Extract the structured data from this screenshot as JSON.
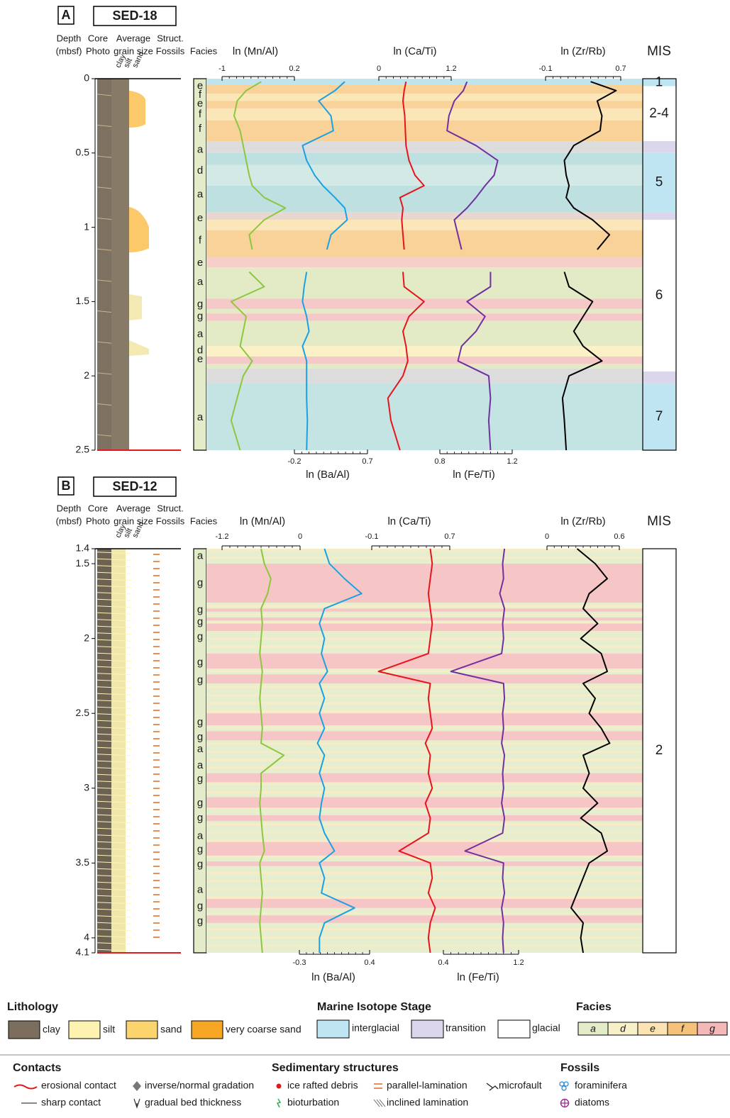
{
  "chart_data": [
    {
      "type": "well-log",
      "panel": "A",
      "core": "SED-18",
      "headers": {
        "depth": [
          "Depth",
          "(mbsf)"
        ],
        "core": [
          "Core",
          "Photo"
        ],
        "grain": [
          "Average",
          "grain size"
        ],
        "struct": [
          "Struct.",
          "Fossils"
        ],
        "facies": "Facies",
        "mis": "MIS"
      },
      "grain_classes": [
        "clay",
        "silt",
        "sand"
      ],
      "ylim": [
        0,
        2.5
      ],
      "yticks": [
        0,
        0.5,
        1,
        1.5,
        2,
        2.5
      ],
      "depth": [
        0.02,
        0.08,
        0.15,
        0.25,
        0.35,
        0.45,
        0.55,
        0.65,
        0.72,
        0.8,
        0.87,
        0.95,
        1.05,
        1.15,
        1.25,
        1.3,
        1.4,
        1.5,
        1.6,
        1.7,
        1.8,
        1.9,
        2.0,
        2.15,
        2.3,
        2.5
      ],
      "series": [
        {
          "name": "ln (Mn/Al)",
          "color": "#8dc63f",
          "axis": "top",
          "xlim": [
            -1,
            0.2
          ],
          "xticks": [
            -1,
            0.2
          ],
          "values": [
            -0.35,
            -0.6,
            -0.75,
            -0.8,
            -0.7,
            -0.65,
            -0.6,
            -0.55,
            -0.5,
            -0.3,
            0.05,
            -0.3,
            -0.55,
            -0.5,
            null,
            -0.55,
            -0.3,
            -0.85,
            -0.6,
            -0.65,
            -0.7,
            -0.5,
            -0.65,
            -0.75,
            -0.85,
            -0.7
          ]
        },
        {
          "name": "ln (Ba/Al)",
          "color": "#1ba1e2",
          "axis": "bottom",
          "xlim": [
            -0.2,
            0.7
          ],
          "xticks": [
            -0.2,
            0.7
          ],
          "values": [
            0.42,
            0.3,
            0.1,
            0.25,
            0.28,
            -0.1,
            -0.05,
            0.05,
            0.15,
            0.3,
            0.42,
            0.45,
            0.25,
            0.2,
            null,
            -0.05,
            -0.08,
            -0.1,
            -0.05,
            -0.02,
            -0.1,
            -0.05,
            -0.05,
            -0.05,
            -0.04,
            -0.05
          ]
        },
        {
          "name": "ln (Ca/Ti)",
          "color": "#e8141b",
          "axis": "top",
          "xlim": [
            0,
            1.2
          ],
          "xticks": [
            0,
            1.2
          ],
          "values": [
            0.45,
            0.42,
            0.4,
            0.43,
            0.44,
            0.45,
            0.5,
            0.6,
            0.75,
            0.35,
            0.4,
            0.38,
            0.4,
            0.42,
            null,
            0.4,
            0.42,
            0.75,
            0.5,
            0.4,
            0.45,
            0.48,
            0.4,
            0.15,
            0.2,
            0.35
          ]
        },
        {
          "name": "ln (Fe/Ti)",
          "color": "#7030a0",
          "axis": "bottom",
          "xlim": [
            0.8,
            1.2
          ],
          "xticks": [
            0.8,
            1.2
          ],
          "values": [
            0.95,
            0.93,
            0.88,
            0.85,
            0.84,
            1.0,
            1.12,
            1.1,
            1.05,
            1.0,
            0.95,
            0.88,
            0.9,
            0.92,
            null,
            1.08,
            1.08,
            0.95,
            1.05,
            1.0,
            0.92,
            0.9,
            1.07,
            1.08,
            1.07,
            1.08
          ]
        },
        {
          "name": "ln (Zr/Rb)",
          "color": "#000000",
          "axis": "top",
          "xlim": [
            -0.1,
            0.7
          ],
          "xticks": [
            -0.1,
            0.7
          ],
          "values": [
            0.38,
            0.65,
            0.45,
            0.5,
            0.48,
            0.2,
            0.1,
            0.12,
            0.15,
            0.12,
            0.2,
            0.4,
            0.58,
            0.45,
            null,
            0.1,
            0.15,
            0.4,
            0.3,
            0.2,
            0.3,
            0.5,
            0.15,
            0.08,
            0.1,
            0.12
          ]
        }
      ],
      "bands": [
        {
          "from": 0,
          "to": 0.04,
          "color": "#bfe4ee"
        },
        {
          "from": 0.04,
          "to": 0.1,
          "color": "#f9d29a"
        },
        {
          "from": 0.1,
          "to": 0.15,
          "color": "#fbe6b8"
        },
        {
          "from": 0.15,
          "to": 0.2,
          "color": "#f9d29a"
        },
        {
          "from": 0.2,
          "to": 0.28,
          "color": "#fbe6b8"
        },
        {
          "from": 0.28,
          "to": 0.42,
          "color": "#f9d29a"
        },
        {
          "from": 0.42,
          "to": 0.5,
          "color": "#dcdcdc"
        },
        {
          "from": 0.5,
          "to": 0.58,
          "color": "#bfe0e0"
        },
        {
          "from": 0.58,
          "to": 0.72,
          "color": "#d2e9e6"
        },
        {
          "from": 0.72,
          "to": 0.9,
          "color": "#bfe0e0"
        },
        {
          "from": 0.9,
          "to": 0.95,
          "color": "#e8d6d0"
        },
        {
          "from": 0.95,
          "to": 1.02,
          "color": "#fbe6b8"
        },
        {
          "from": 1.02,
          "to": 1.2,
          "color": "#f9d29a"
        },
        {
          "from": 1.2,
          "to": 1.27,
          "color": "#f6cfc8"
        },
        {
          "from": 1.27,
          "to": 1.48,
          "color": "#e2ebc5"
        },
        {
          "from": 1.48,
          "to": 1.55,
          "color": "#f6c9c9"
        },
        {
          "from": 1.55,
          "to": 1.58,
          "color": "#e2ebc5"
        },
        {
          "from": 1.58,
          "to": 1.63,
          "color": "#f6c9c9"
        },
        {
          "from": 1.63,
          "to": 1.8,
          "color": "#e2ebc5"
        },
        {
          "from": 1.8,
          "to": 1.87,
          "color": "#fbf0c6"
        },
        {
          "from": 1.87,
          "to": 1.92,
          "color": "#f6c9c9"
        },
        {
          "from": 1.92,
          "to": 1.95,
          "color": "#e2ebc5"
        },
        {
          "from": 1.95,
          "to": 2.05,
          "color": "#dcdcdc"
        },
        {
          "from": 2.05,
          "to": 2.5,
          "color": "#c4e3e3"
        }
      ],
      "facies_labels": [
        {
          "label": "e",
          "depth": 0.05
        },
        {
          "label": "f",
          "depth": 0.11
        },
        {
          "label": "e",
          "depth": 0.17
        },
        {
          "label": "f",
          "depth": 0.24
        },
        {
          "label": "f",
          "depth": 0.34
        },
        {
          "label": "a",
          "depth": 0.48
        },
        {
          "label": "d",
          "depth": 0.62
        },
        {
          "label": "a",
          "depth": 0.78
        },
        {
          "label": "e",
          "depth": 0.94
        },
        {
          "label": "f",
          "depth": 1.09
        },
        {
          "label": "e",
          "depth": 1.24
        },
        {
          "label": "a",
          "depth": 1.37
        },
        {
          "label": "g",
          "depth": 1.52
        },
        {
          "label": "g",
          "depth": 1.6
        },
        {
          "label": "a",
          "depth": 1.72
        },
        {
          "label": "d",
          "depth": 1.83
        },
        {
          "label": "e",
          "depth": 1.89
        },
        {
          "label": "a",
          "depth": 2.28
        }
      ],
      "mis": [
        {
          "from": 0,
          "to": 0.05,
          "color": "#bfe4f2",
          "label": "1"
        },
        {
          "from": 0.05,
          "to": 0.42,
          "color": "#ffffff",
          "label": "2-4"
        },
        {
          "from": 0.42,
          "to": 0.5,
          "color": "#dcd6ec"
        },
        {
          "from": 0.5,
          "to": 0.9,
          "color": "#bfe4f2",
          "label": "5"
        },
        {
          "from": 0.9,
          "to": 0.95,
          "color": "#dcd6ec"
        },
        {
          "from": 0.95,
          "to": 1.97,
          "color": "#ffffff",
          "label": "6"
        },
        {
          "from": 1.97,
          "to": 2.05,
          "color": "#dcd6ec"
        },
        {
          "from": 2.05,
          "to": 2.5,
          "color": "#bfe4f2",
          "label": "7"
        }
      ]
    },
    {
      "type": "well-log",
      "panel": "B",
      "core": "SED-12",
      "headers": {
        "depth": [
          "Depth",
          "(mbsf)"
        ],
        "core": [
          "Core",
          "Photo"
        ],
        "grain": [
          "Average",
          "grain size"
        ],
        "struct": [
          "Struct.",
          "Fossils"
        ],
        "facies": "Facies",
        "mis": "MIS"
      },
      "grain_classes": [
        "clay",
        "silt",
        "sand"
      ],
      "ylim": [
        1.4,
        4.1
      ],
      "yticks": [
        1.4,
        1.5,
        2,
        2.5,
        3,
        3.5,
        4,
        4.1
      ],
      "depth": [
        1.4,
        1.5,
        1.6,
        1.7,
        1.8,
        1.9,
        2.0,
        2.1,
        2.22,
        2.3,
        2.4,
        2.5,
        2.6,
        2.7,
        2.78,
        2.9,
        3.0,
        3.1,
        3.2,
        3.3,
        3.42,
        3.5,
        3.6,
        3.7,
        3.8,
        3.9,
        4.0,
        4.1
      ],
      "series": [
        {
          "name": "ln (Mn/Al)",
          "color": "#8dc63f",
          "axis": "top",
          "xlim": [
            -1.2,
            0
          ],
          "xticks": [
            -1.2,
            0
          ],
          "values": [
            -0.6,
            -0.55,
            -0.45,
            -0.5,
            -0.6,
            -0.58,
            -0.6,
            -0.62,
            -0.58,
            -0.6,
            -0.62,
            -0.6,
            -0.58,
            -0.6,
            -0.25,
            -0.6,
            -0.6,
            -0.62,
            -0.6,
            -0.58,
            -0.55,
            -0.62,
            -0.6,
            -0.58,
            -0.6,
            -0.62,
            -0.6,
            -0.58
          ]
        },
        {
          "name": "ln (Ba/Al)",
          "color": "#1ba1e2",
          "axis": "bottom",
          "xlim": [
            -0.3,
            0.4
          ],
          "xticks": [
            -0.3,
            0.4
          ],
          "values": [
            -0.05,
            0.0,
            0.15,
            0.32,
            -0.05,
            -0.1,
            -0.05,
            -0.08,
            -0.02,
            -0.1,
            -0.05,
            -0.1,
            -0.05,
            -0.12,
            -0.05,
            -0.1,
            -0.05,
            -0.08,
            -0.1,
            -0.05,
            0.05,
            -0.1,
            -0.05,
            -0.08,
            0.25,
            -0.05,
            -0.1,
            -0.1
          ]
        },
        {
          "name": "ln (Ca/Ti)",
          "color": "#e8141b",
          "axis": "top",
          "xlim": [
            -0.1,
            0.7
          ],
          "xticks": [
            -0.1,
            0.7
          ],
          "values": [
            0.5,
            0.52,
            0.5,
            0.48,
            0.5,
            0.52,
            0.5,
            0.48,
            -0.03,
            0.5,
            0.48,
            0.5,
            0.52,
            0.45,
            0.5,
            0.48,
            0.52,
            0.45,
            0.5,
            0.48,
            0.18,
            0.5,
            0.52,
            0.48,
            0.55,
            0.5,
            0.48,
            0.5
          ]
        },
        {
          "name": "ln (Fe/Ti)",
          "color": "#7030a0",
          "axis": "bottom",
          "xlim": [
            0.4,
            1.2
          ],
          "xticks": [
            0.4,
            1.2
          ],
          "values": [
            1.05,
            1.03,
            1.04,
            1.0,
            1.05,
            1.03,
            1.04,
            1.02,
            0.48,
            1.04,
            1.05,
            1.03,
            1.04,
            1.02,
            1.05,
            1.03,
            1.04,
            1.02,
            1.05,
            1.03,
            0.63,
            1.04,
            1.03,
            1.05,
            1.02,
            1.04,
            1.03,
            1.04
          ]
        },
        {
          "name": "ln (Zr/Rb)",
          "color": "#000000",
          "axis": "top",
          "xlim": [
            0,
            0.6
          ],
          "xticks": [
            0,
            0.6
          ],
          "values": [
            0.25,
            0.4,
            0.5,
            0.35,
            0.3,
            0.42,
            0.28,
            0.45,
            0.5,
            0.3,
            0.4,
            0.35,
            0.45,
            0.52,
            0.3,
            0.35,
            0.3,
            0.42,
            0.28,
            0.45,
            0.5,
            0.35,
            0.3,
            0.25,
            0.2,
            0.3,
            0.28,
            0.3
          ]
        }
      ],
      "bands": [
        {
          "from": 1.5,
          "to": 1.76,
          "color": "#f6c6c6"
        },
        {
          "from": 1.8,
          "to": 1.82,
          "color": "#f6c6c6"
        },
        {
          "from": 1.86,
          "to": 1.88,
          "color": "#f6c6c6"
        },
        {
          "from": 1.9,
          "to": 1.95,
          "color": "#f6c6c6"
        },
        {
          "from": 2.1,
          "to": 2.2,
          "color": "#f6c6c6"
        },
        {
          "from": 2.24,
          "to": 2.3,
          "color": "#f6c6c6"
        },
        {
          "from": 2.5,
          "to": 2.58,
          "color": "#f6c6c6"
        },
        {
          "from": 2.62,
          "to": 2.68,
          "color": "#f6c6c6"
        },
        {
          "from": 2.9,
          "to": 2.96,
          "color": "#f6c6c6"
        },
        {
          "from": 3.06,
          "to": 3.13,
          "color": "#f6c6c6"
        },
        {
          "from": 3.18,
          "to": 3.22,
          "color": "#f6c6c6"
        },
        {
          "from": 3.36,
          "to": 3.45,
          "color": "#f6c6c6"
        },
        {
          "from": 3.49,
          "to": 3.52,
          "color": "#f6c6c6"
        },
        {
          "from": 3.74,
          "to": 3.8,
          "color": "#f6c6c6"
        },
        {
          "from": 3.85,
          "to": 3.9,
          "color": "#f6c6c6"
        }
      ],
      "facies_labels": [
        {
          "label": "a",
          "depth": 1.45
        },
        {
          "label": "g",
          "depth": 1.63
        },
        {
          "label": "g",
          "depth": 1.81
        },
        {
          "label": "g",
          "depth": 1.89
        },
        {
          "label": "g",
          "depth": 1.99
        },
        {
          "label": "g",
          "depth": 2.16
        },
        {
          "label": "g",
          "depth": 2.28
        },
        {
          "label": "g",
          "depth": 2.56
        },
        {
          "label": "g",
          "depth": 2.66
        },
        {
          "label": "a",
          "depth": 2.74
        },
        {
          "label": "a",
          "depth": 2.85
        },
        {
          "label": "g",
          "depth": 2.94
        },
        {
          "label": "g",
          "depth": 3.1
        },
        {
          "label": "g",
          "depth": 3.2
        },
        {
          "label": "a",
          "depth": 3.32
        },
        {
          "label": "g",
          "depth": 3.41
        },
        {
          "label": "g",
          "depth": 3.51
        },
        {
          "label": "a",
          "depth": 3.68
        },
        {
          "label": "g",
          "depth": 3.79
        },
        {
          "label": "g",
          "depth": 3.89
        }
      ],
      "mis": [
        {
          "from": 1.4,
          "to": 4.1,
          "color": "#ffffff",
          "label": "2"
        }
      ]
    }
  ],
  "legend": {
    "lithology": {
      "title": "Lithology",
      "items": [
        {
          "label": "clay",
          "color": "#7b6e5d"
        },
        {
          "label": "silt",
          "color": "#fdf3b0"
        },
        {
          "label": "sand",
          "color": "#fbd46e"
        },
        {
          "label": "very coarse sand",
          "color": "#f6a623"
        }
      ]
    },
    "mis": {
      "title": "Marine Isotope Stage",
      "items": [
        {
          "label": "interglacial",
          "color": "#bfe4f2"
        },
        {
          "label": "transition",
          "color": "#dcd6ec"
        },
        {
          "label": "glacial",
          "color": "#ffffff"
        }
      ]
    },
    "facies": {
      "title": "Facies",
      "items": [
        {
          "label": "a",
          "color": "#e3ecc8"
        },
        {
          "label": "d",
          "color": "#f8f0c6"
        },
        {
          "label": "e",
          "color": "#fbe3b3"
        },
        {
          "label": "f",
          "color": "#f6c27a"
        },
        {
          "label": "g",
          "color": "#f5b8b8"
        }
      ]
    },
    "contacts": {
      "title": "Contacts",
      "items": [
        "erosional contact",
        "sharp contact",
        "inverse/normal gradation",
        "gradual bed thickness"
      ]
    },
    "structures": {
      "title": "Sedimentary structures",
      "items": [
        "ice rafted debris",
        "bioturbation",
        "parallel-lamination",
        "inclined lamination",
        "microfault"
      ]
    },
    "fossils": {
      "title": "Fossils",
      "items": [
        "foraminifera",
        "diatoms"
      ]
    }
  }
}
